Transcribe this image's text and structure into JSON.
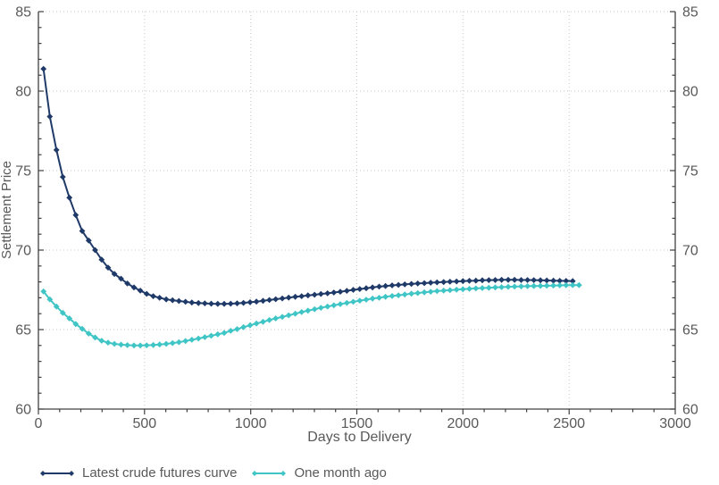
{
  "colors": {
    "background": "#ffffff",
    "axis": "#404040",
    "grid": "#c9c9c9",
    "text": "#595959",
    "series_latest": "#1f3a68",
    "series_month_ago": "#40c5c6"
  },
  "chart_data": {
    "type": "line",
    "title": "",
    "xlabel": "Days to Delivery",
    "ylabel": "Settlement Price",
    "xlim": [
      0,
      3000
    ],
    "ylim": [
      60,
      85
    ],
    "x_major_ticks": [
      0,
      500,
      1000,
      1500,
      2000,
      2500,
      3000
    ],
    "x_minor_step": 100,
    "y_major_ticks": [
      60,
      65,
      70,
      75,
      80,
      85
    ],
    "y_minor_step": 1,
    "grid": "dotted gridlines at major ticks, both axes; mirrored right y-axis",
    "legend_position": "bottom-left",
    "series": [
      {
        "name": "Latest crude futures curve",
        "color": "#1f3a68",
        "marker": "diamond",
        "x": [
          24,
          54,
          85,
          115,
          146,
          176,
          206,
          237,
          267,
          298,
          328,
          358,
          389,
          419,
          450,
          480,
          510,
          541,
          571,
          602,
          632,
          662,
          693,
          723,
          754,
          784,
          814,
          845,
          875,
          906,
          936,
          966,
          997,
          1027,
          1058,
          1088,
          1118,
          1149,
          1179,
          1210,
          1240,
          1270,
          1301,
          1331,
          1362,
          1392,
          1422,
          1453,
          1483,
          1514,
          1544,
          1574,
          1605,
          1635,
          1666,
          1696,
          1726,
          1757,
          1787,
          1818,
          1848,
          1878,
          1909,
          1939,
          1970,
          2000,
          2030,
          2061,
          2091,
          2122,
          2152,
          2182,
          2213,
          2243,
          2274,
          2304,
          2334,
          2365,
          2395,
          2426,
          2456,
          2486,
          2517
        ],
        "y": [
          81.4,
          78.4,
          76.3,
          74.6,
          73.3,
          72.2,
          71.2,
          70.6,
          70.0,
          69.4,
          68.9,
          68.5,
          68.2,
          67.9,
          67.65,
          67.45,
          67.25,
          67.1,
          67.0,
          66.9,
          66.85,
          66.8,
          66.75,
          66.7,
          66.67,
          66.65,
          66.63,
          66.62,
          66.62,
          66.63,
          66.65,
          66.68,
          66.72,
          66.76,
          66.81,
          66.86,
          66.91,
          66.96,
          67.01,
          67.06,
          67.1,
          67.15,
          67.19,
          67.24,
          67.28,
          67.33,
          67.38,
          67.44,
          67.5,
          67.55,
          67.6,
          67.65,
          67.7,
          67.74,
          67.78,
          67.81,
          67.84,
          67.87,
          67.9,
          67.92,
          67.95,
          67.97,
          67.99,
          68.01,
          68.03,
          68.05,
          68.07,
          68.08,
          68.1,
          68.11,
          68.12,
          68.13,
          68.13,
          68.13,
          68.12,
          68.12,
          68.11,
          68.1,
          68.09,
          68.08,
          68.07,
          68.06,
          68.05
        ]
      },
      {
        "name": "One month ago",
        "color": "#40c5c6",
        "marker": "diamond",
        "x": [
          24,
          54,
          85,
          115,
          146,
          176,
          206,
          237,
          267,
          298,
          328,
          358,
          389,
          419,
          450,
          480,
          510,
          541,
          571,
          602,
          632,
          662,
          693,
          723,
          754,
          784,
          814,
          845,
          875,
          906,
          936,
          966,
          997,
          1027,
          1058,
          1088,
          1118,
          1149,
          1179,
          1210,
          1240,
          1270,
          1301,
          1331,
          1362,
          1392,
          1422,
          1453,
          1483,
          1514,
          1544,
          1574,
          1605,
          1635,
          1666,
          1696,
          1726,
          1757,
          1787,
          1818,
          1848,
          1878,
          1909,
          1939,
          1970,
          2000,
          2030,
          2061,
          2091,
          2122,
          2152,
          2182,
          2213,
          2243,
          2274,
          2304,
          2334,
          2365,
          2395,
          2426,
          2456,
          2486,
          2517,
          2547
        ],
        "y": [
          67.4,
          66.9,
          66.45,
          66.05,
          65.7,
          65.35,
          65.05,
          64.75,
          64.5,
          64.3,
          64.18,
          64.1,
          64.05,
          64.02,
          64.0,
          64.0,
          64.01,
          64.03,
          64.06,
          64.1,
          64.15,
          64.21,
          64.28,
          64.36,
          64.44,
          64.52,
          64.61,
          64.7,
          64.79,
          64.92,
          65.03,
          65.15,
          65.27,
          65.38,
          65.49,
          65.6,
          65.7,
          65.8,
          65.9,
          66.0,
          66.1,
          66.19,
          66.28,
          66.37,
          66.45,
          66.53,
          66.6,
          66.68,
          66.75,
          66.82,
          66.88,
          66.95,
          67.0,
          67.06,
          67.11,
          67.16,
          67.21,
          67.26,
          67.3,
          67.34,
          67.38,
          67.42,
          67.45,
          67.48,
          67.51,
          67.54,
          67.56,
          67.59,
          67.61,
          67.63,
          67.65,
          67.67,
          67.69,
          67.7,
          67.72,
          67.73,
          67.74,
          67.75,
          67.76,
          67.77,
          67.78,
          67.79,
          67.8,
          67.8
        ]
      }
    ]
  },
  "legend": {
    "items": [
      {
        "label": "Latest crude futures curve"
      },
      {
        "label": "One month ago"
      }
    ]
  }
}
